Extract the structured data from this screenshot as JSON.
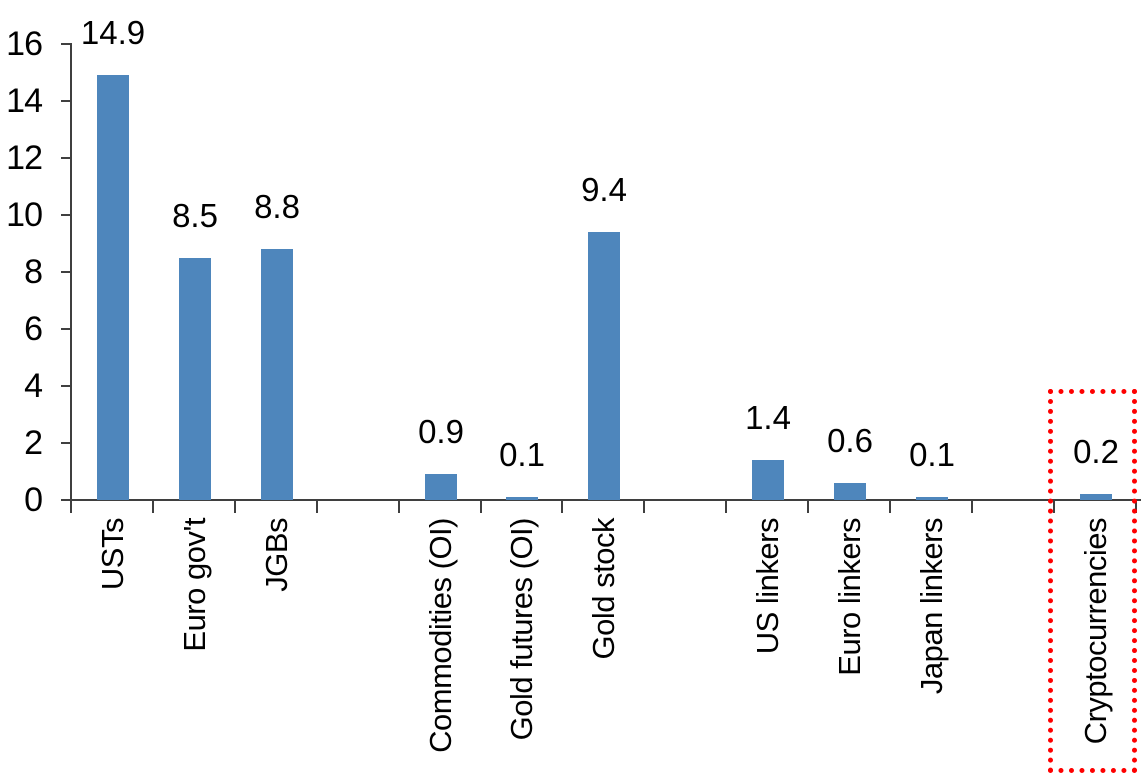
{
  "chart_data": {
    "type": "bar",
    "categories": [
      "USTs",
      "Euro gov't",
      "JGBs",
      "Commodities (OI)",
      "Gold futures (OI)",
      "Gold stock",
      "US linkers",
      "Euro linkers",
      "Japan linkers",
      "Cryptocurrencies"
    ],
    "values": [
      14.9,
      8.5,
      8.8,
      0.9,
      0.1,
      9.4,
      1.4,
      0.6,
      0.1,
      0.2
    ],
    "slot_index": [
      0,
      1,
      2,
      4,
      5,
      6,
      8,
      9,
      10,
      12
    ],
    "total_slots": 13,
    "yticks": [
      0,
      2,
      4,
      6,
      8,
      10,
      12,
      14,
      16
    ],
    "ylim": [
      0,
      16
    ],
    "grid": false,
    "legend": false,
    "data_labels_shown": true,
    "x_labels_rotation": "90-degrees-ccw",
    "colors": {
      "bar": "#4E86BC",
      "axis": "#3F3F3F",
      "text": "#000000",
      "highlight_box": "#FE0000"
    },
    "highlight": {
      "category": "Cryptocurrencies",
      "style": "red-dotted-rectangle"
    }
  }
}
